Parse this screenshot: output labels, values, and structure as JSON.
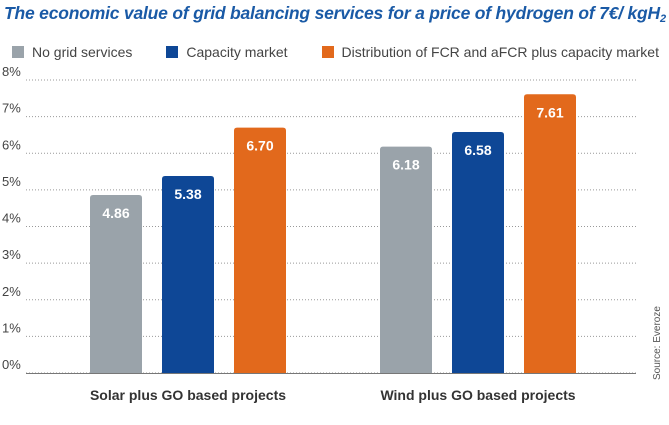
{
  "title_main": "The economic value of grid balancing services for a price of hydrogen of 7€/ kgH",
  "title_sub": "2",
  "source": "Source: Everoze",
  "chart_data": {
    "type": "bar",
    "categories": [
      "Solar plus GO based projects",
      "Wind plus GO based projects"
    ],
    "series": [
      {
        "name": "No grid services",
        "color": "#9aa3aa",
        "values": [
          4.86,
          6.18
        ],
        "labels": [
          "4.86",
          "6.18"
        ]
      },
      {
        "name": "Capacity market",
        "color": "#0e4796",
        "values": [
          5.38,
          6.58
        ],
        "labels": [
          "5.38",
          "6.58"
        ]
      },
      {
        "name": "Distribution of FCR and aFCR plus capacity market",
        "color": "#e2691c",
        "values": [
          6.7,
          7.61
        ],
        "labels": [
          "6.70",
          "7.61"
        ]
      }
    ],
    "yticks": [
      "0%",
      "1%",
      "2%",
      "3%",
      "4%",
      "5%",
      "6%",
      "7%",
      "8%"
    ],
    "ylim": [
      0,
      8
    ],
    "grid": true,
    "legend_position": "top"
  }
}
